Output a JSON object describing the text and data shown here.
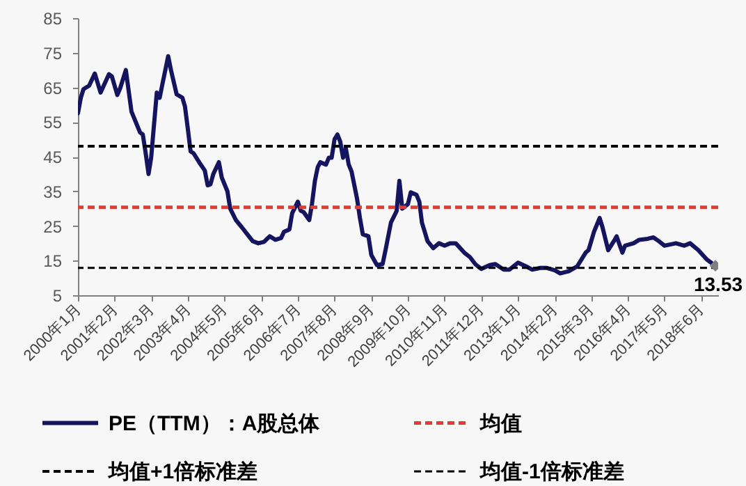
{
  "chart_data": {
    "type": "line",
    "x": [
      "2000-01",
      "2000-02",
      "2000-03",
      "2000-05",
      "2000-07",
      "2000-09",
      "2000-12",
      "2001-01",
      "2001-03",
      "2001-04",
      "2001-06",
      "2001-08",
      "2001-10",
      "2001-11",
      "2001-12",
      "2002-01",
      "2002-02",
      "2002-03",
      "2002-05",
      "2002-06",
      "2002-07",
      "2002-09",
      "2002-10",
      "2002-12",
      "2003-02",
      "2003-03",
      "2003-04",
      "2003-05",
      "2003-06",
      "2003-08",
      "2003-10",
      "2003-11",
      "2003-12",
      "2004-01",
      "2004-03",
      "2004-04",
      "2004-06",
      "2004-07",
      "2004-09",
      "2004-11",
      "2005-01",
      "2005-03",
      "2005-05",
      "2005-07",
      "2005-09",
      "2005-11",
      "2006-01",
      "2006-02",
      "2006-04",
      "2006-05",
      "2006-07",
      "2006-08",
      "2006-09",
      "2006-11",
      "2006-12",
      "2007-01",
      "2007-02",
      "2007-03",
      "2007-05",
      "2007-06",
      "2007-07",
      "2007-08",
      "2007-09",
      "2007-10",
      "2007-11",
      "2007-12",
      "2008-01",
      "2008-02",
      "2008-04",
      "2008-05",
      "2008-06",
      "2008-08",
      "2008-09",
      "2008-11",
      "2009-01",
      "2009-02",
      "2009-04",
      "2009-06",
      "2009-07",
      "2009-08",
      "2009-10",
      "2009-11",
      "2010-01",
      "2010-02",
      "2010-03",
      "2010-05",
      "2010-07",
      "2010-09",
      "2010-11",
      "2011-01",
      "2011-03",
      "2011-06",
      "2011-08",
      "2011-10",
      "2011-12",
      "2012-03",
      "2012-05",
      "2012-08",
      "2012-10",
      "2013-01",
      "2013-04",
      "2013-06",
      "2013-09",
      "2013-11",
      "2014-02",
      "2014-04",
      "2014-07",
      "2014-10",
      "2015-01",
      "2015-02",
      "2015-04",
      "2015-06",
      "2015-07",
      "2015-09",
      "2015-11",
      "2015-12",
      "2016-02",
      "2016-03",
      "2016-06",
      "2016-08",
      "2016-11",
      "2017-01",
      "2017-03",
      "2017-05",
      "2017-09",
      "2017-12",
      "2018-02",
      "2018-05",
      "2018-08",
      "2018-11"
    ],
    "series": [
      {
        "name": "PE（TTM）：A股总体",
        "color": "#14145f",
        "values": [
          57.5,
          62,
          64.5,
          65.5,
          69,
          63.5,
          68.8,
          68.2,
          62.8,
          64.8,
          70,
          58,
          54,
          52,
          51.4,
          46,
          40,
          44.7,
          63.5,
          62,
          66,
          74,
          70,
          63,
          62,
          59.5,
          53,
          46.5,
          46,
          43.4,
          41,
          36.7,
          37,
          40,
          43.4,
          39,
          35,
          30,
          26.7,
          24.7,
          22.6,
          20.6,
          20,
          20.4,
          22,
          21,
          21.5,
          23.3,
          24,
          28.7,
          32,
          29.4,
          29,
          26.7,
          31.4,
          38,
          42,
          43.4,
          42.7,
          44.7,
          44.7,
          50,
          51.4,
          49.4,
          44.7,
          47.4,
          42.7,
          40.7,
          32.7,
          27.3,
          22.6,
          22,
          16.6,
          13.7,
          14,
          18,
          26,
          29.3,
          38,
          30,
          31.3,
          34.7,
          34,
          32,
          26,
          20.6,
          18.6,
          20,
          19.3,
          20,
          20,
          17.3,
          16,
          13.9,
          12.6,
          13.7,
          14,
          12.4,
          12.4,
          14.4,
          13.3,
          12.4,
          12.9,
          12.9,
          12.2,
          11.3,
          11.9,
          13.3,
          17.3,
          18,
          23.3,
          27.3,
          24.7,
          18,
          20.6,
          22,
          17.3,
          19.3,
          20,
          21,
          21.3,
          21.7,
          20.6,
          19.3,
          20,
          19.3,
          20,
          18,
          15.3,
          13.53
        ],
        "value_labels": [
          null,
          null,
          null,
          null,
          null,
          null,
          null,
          null,
          null,
          null,
          null,
          null,
          null,
          null,
          null,
          null,
          null,
          null,
          null,
          null,
          null,
          null,
          null,
          null,
          null,
          null,
          null,
          null,
          null,
          null,
          null,
          null,
          null,
          null,
          null,
          null,
          null,
          null,
          null,
          null,
          null,
          null,
          null,
          null,
          null,
          null,
          null,
          null,
          null,
          null,
          null,
          null,
          null,
          null,
          null,
          null,
          null,
          null,
          null,
          null,
          null,
          null,
          null,
          null,
          null,
          null,
          null,
          null,
          null,
          null,
          null,
          null,
          null,
          null,
          null,
          null,
          null,
          null,
          null,
          null,
          null,
          null,
          null,
          null,
          null,
          null,
          null,
          null,
          null,
          null,
          null,
          null,
          null,
          null,
          null,
          null,
          null,
          null,
          null,
          null,
          null,
          null,
          null,
          null,
          null,
          null,
          null,
          null,
          null,
          null,
          null,
          null,
          null,
          null,
          null,
          null,
          null,
          null,
          null,
          null,
          null,
          null,
          null,
          null,
          null,
          null,
          null,
          null,
          null,
          "13.53"
        ]
      },
      {
        "type": "scatter",
        "color": "#808080",
        "marker": "diamond",
        "x": [
          "2018-11"
        ],
        "values": [
          13.5
        ]
      }
    ],
    "xlim": [
      "2000-01",
      "2018-12"
    ],
    "xticks": [
      {
        "value": "2000-01",
        "label": "2000年1月"
      },
      {
        "value": "2001-02",
        "label": "2001年2月"
      },
      {
        "value": "2002-03",
        "label": "2002年3月"
      },
      {
        "value": "2003-04",
        "label": "2003年4月"
      },
      {
        "value": "2004-05",
        "label": "2004年5月"
      },
      {
        "value": "2005-06",
        "label": "2005年6月"
      },
      {
        "value": "2006-07",
        "label": "2006年7月"
      },
      {
        "value": "2007-08",
        "label": "2007年8月"
      },
      {
        "value": "2008-09",
        "label": "2008年9月"
      },
      {
        "value": "2009-10",
        "label": "2009年10月"
      },
      {
        "value": "2010-11",
        "label": "2010年11月"
      },
      {
        "value": "2011-12",
        "label": "2011年12月"
      },
      {
        "value": "2013-01",
        "label": "2013年1月"
      },
      {
        "value": "2014-02",
        "label": "2014年2月"
      },
      {
        "value": "2015-03",
        "label": "2015年3月"
      },
      {
        "value": "2016-04",
        "label": "2016年4月"
      },
      {
        "value": "2017-05",
        "label": "2017年5月"
      },
      {
        "value": "2018-06",
        "label": "2018年6月"
      }
    ],
    "ylim": [
      5,
      85
    ],
    "yticks": [
      5,
      15,
      25,
      35,
      45,
      55,
      65,
      75,
      85
    ],
    "ref_lines": [
      {
        "axis": "y",
        "value": 30.4,
        "label": "均值",
        "color": "#e03c31",
        "line_style": "dashed"
      },
      {
        "axis": "y",
        "value": 48,
        "label": "均值+1倍标准差",
        "color": "#000000",
        "line_style": "dashed"
      },
      {
        "axis": "y",
        "value": 12.9,
        "label": "均值-1倍标准差",
        "color": "#000000",
        "line_style": "dashed"
      }
    ],
    "legend": "bottom"
  }
}
